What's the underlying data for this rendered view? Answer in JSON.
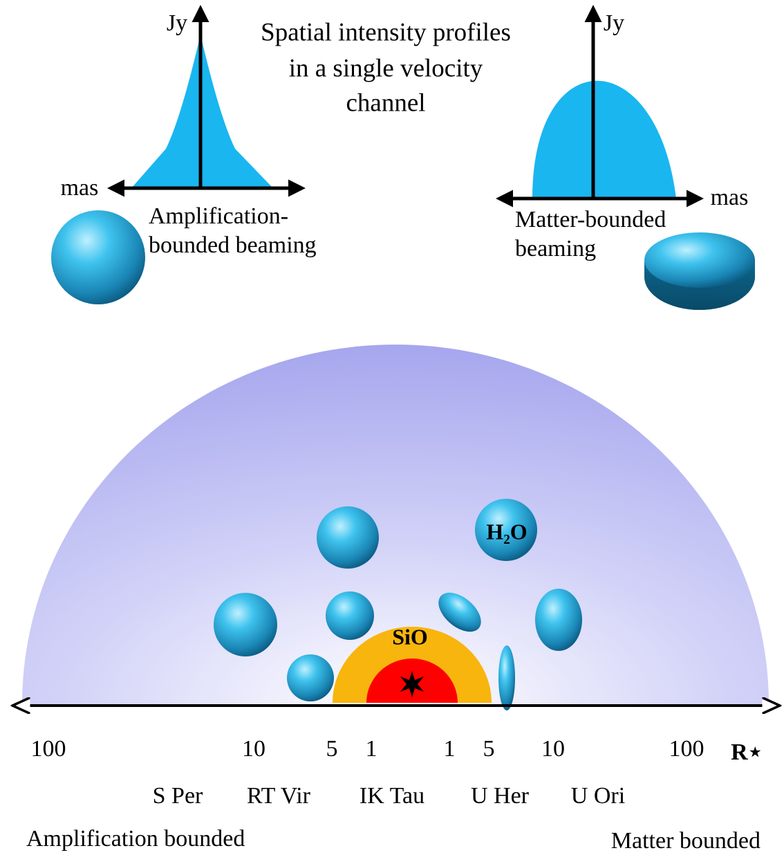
{
  "title_lines": [
    "Spatial intensity profiles",
    "in a single velocity",
    "channel"
  ],
  "left_profile": {
    "y_axis": "Jy",
    "x_axis": "mas",
    "caption_lines": [
      "Amplification-",
      "bounded beaming"
    ]
  },
  "right_profile": {
    "y_axis": "Jy",
    "x_axis": "mas",
    "caption_lines": [
      "Matter-bounded",
      "beaming"
    ]
  },
  "shell": {
    "inner_label": "SiO",
    "cloud_label": "H₂O"
  },
  "radius_axis": {
    "labels": [
      "100",
      "10",
      "5",
      "1",
      "1",
      "5",
      "10",
      "100"
    ],
    "unit": "R⋆"
  },
  "stars": [
    "S Per",
    "RT Vir",
    "IK Tau",
    "U Her",
    "U Ori"
  ],
  "regimes": {
    "left": "Amplification bounded",
    "right": "Matter bounded"
  }
}
